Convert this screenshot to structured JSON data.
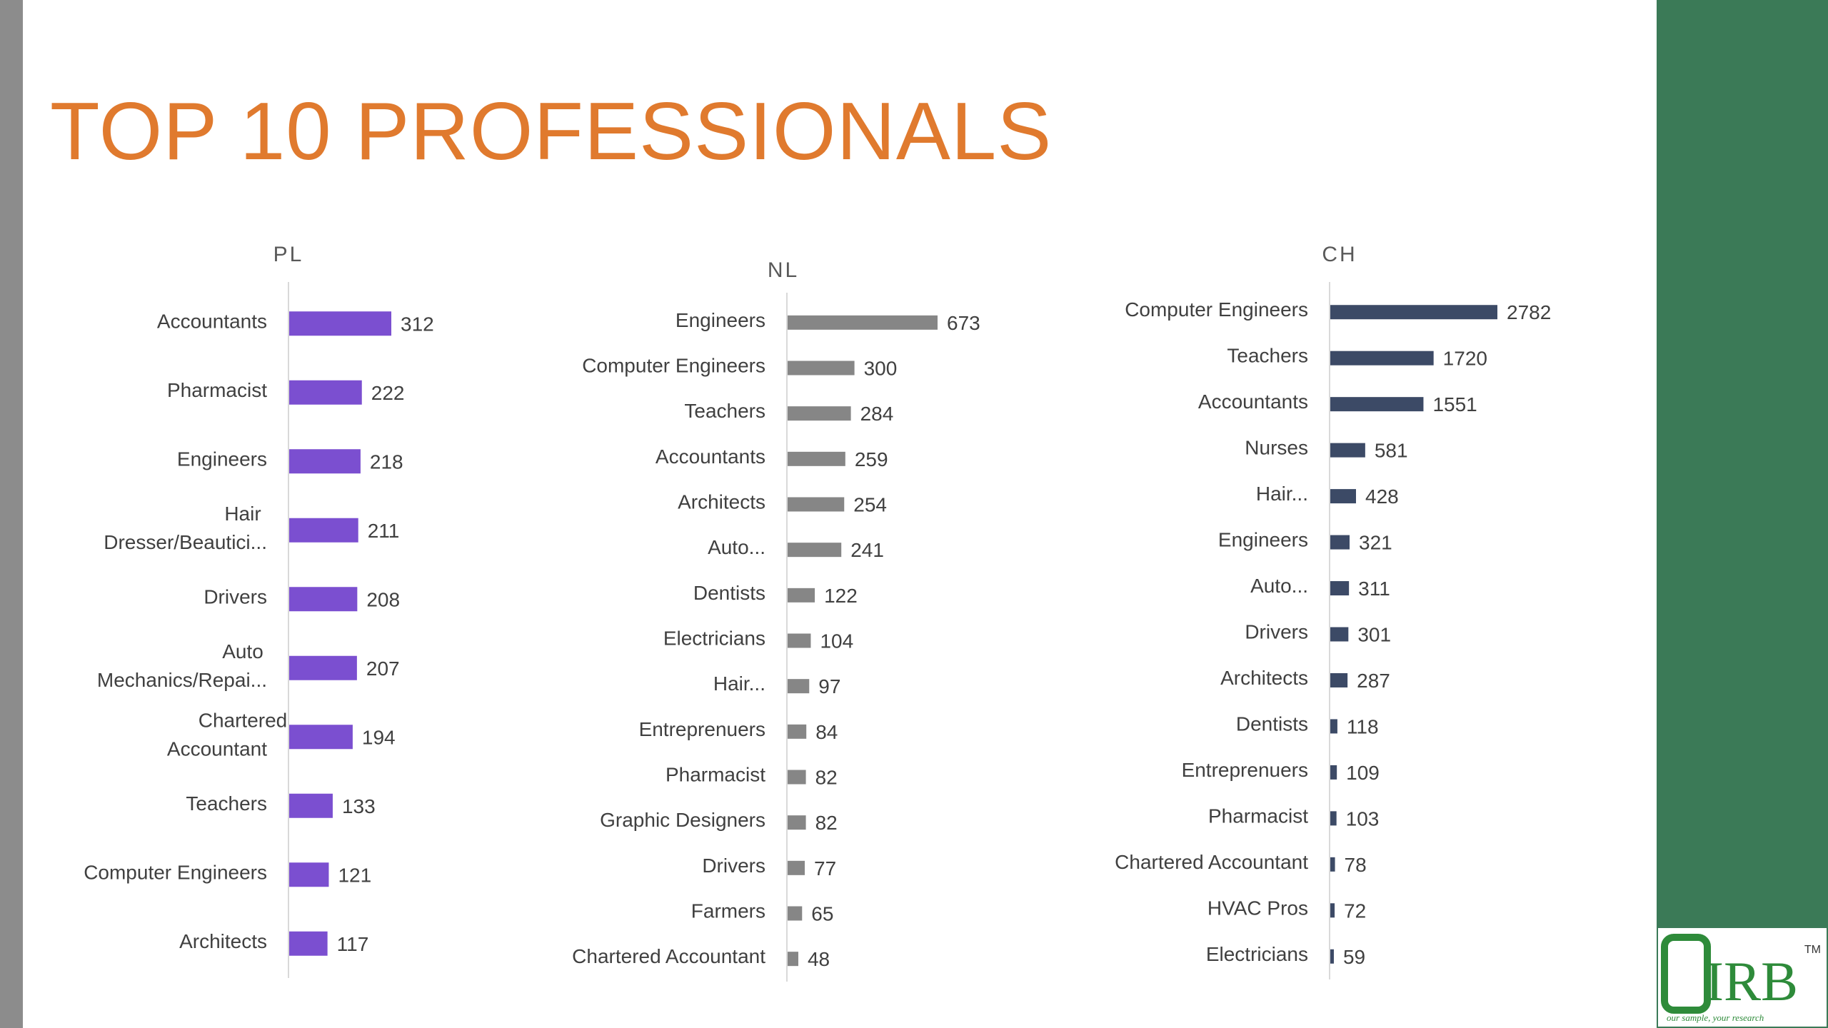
{
  "slide": {
    "title": "TOP 10 PROFESSIONALS"
  },
  "chart_data": [
    {
      "type": "bar",
      "orientation": "horizontal",
      "title": "PL",
      "color": "#7b4fd0",
      "categories": [
        "Accountants",
        "Pharmacist",
        "Engineers",
        "Hair Dresser/Beautici...",
        "Drivers",
        "Auto Mechanics/Repai...",
        "Chartered Accountant",
        "Teachers",
        "Computer Engineers",
        "Architects"
      ],
      "values": [
        312,
        222,
        218,
        211,
        208,
        207,
        194,
        133,
        121,
        117
      ],
      "data_labels": true,
      "grid": false
    },
    {
      "type": "bar",
      "orientation": "horizontal",
      "title": "NL",
      "color": "#868686",
      "categories": [
        "Engineers",
        "Computer Engineers",
        "Teachers",
        "Accountants",
        "Architects",
        "Auto...",
        "Dentists",
        "Electricians",
        "Hair...",
        "Entreprenuers",
        "Pharmacist",
        "Graphic Designers",
        "Drivers",
        "Farmers",
        "Chartered Accountant"
      ],
      "values": [
        673,
        300,
        284,
        259,
        254,
        241,
        122,
        104,
        97,
        84,
        82,
        82,
        77,
        65,
        48
      ],
      "data_labels": true,
      "grid": false
    },
    {
      "type": "bar",
      "orientation": "horizontal",
      "title": "CH",
      "color": "#3c4a66",
      "categories": [
        "Computer Engineers",
        "Teachers",
        "Accountants",
        "Nurses",
        "Hair...",
        "Engineers",
        "Auto...",
        "Drivers",
        "Architects",
        "Dentists",
        "Entreprenuers",
        "Pharmacist",
        "Chartered Accountant",
        "HVAC Pros",
        "Electricians"
      ],
      "values": [
        2782,
        1720,
        1551,
        581,
        428,
        321,
        311,
        301,
        287,
        118,
        109,
        103,
        78,
        72,
        59
      ],
      "data_labels": true,
      "grid": false
    }
  ],
  "logo": {
    "text": "IRB",
    "trademark": "TM",
    "tagline": "our sample, your research"
  },
  "colors": {
    "title": "#e07a2e",
    "left_bar": "#8c8c8c",
    "right_panel": "#3b7a57",
    "logo": "#2e8b3a"
  }
}
